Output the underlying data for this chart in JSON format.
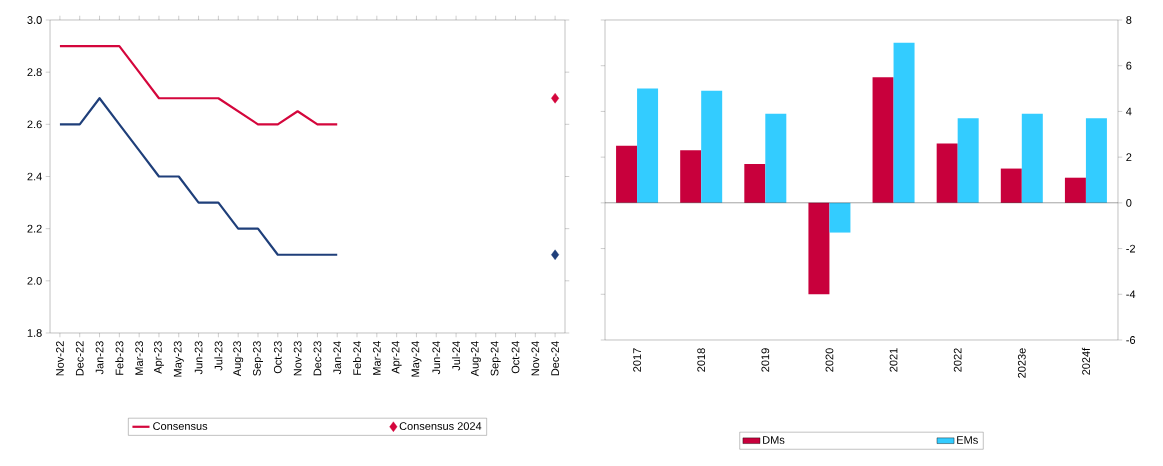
{
  "chart_data": [
    {
      "type": "line",
      "categories": [
        "Nov-22",
        "Dec-22",
        "Jan-23",
        "Feb-23",
        "Mar-23",
        "Apr-23",
        "May-23",
        "Jun-23",
        "Jul-23",
        "Aug-23",
        "Sep-23",
        "Oct-23",
        "Nov-23",
        "Dec-23",
        "Jan-24",
        "Feb-24",
        "Mar-24",
        "Apr-24",
        "May-24",
        "Jun-24",
        "Jul-24",
        "Aug-24",
        "Sep-24",
        "Oct-24",
        "Nov-24",
        "Dec-24"
      ],
      "series": [
        {
          "color": "#1f3f7a",
          "values": [
            2.6,
            2.6,
            2.7,
            2.6,
            2.5,
            2.4,
            2.4,
            2.3,
            2.3,
            2.2,
            2.2,
            2.1,
            2.1,
            2.1,
            2.1,
            null,
            null,
            null,
            null,
            null,
            null,
            null,
            null,
            null,
            null,
            null
          ]
        },
        {
          "name": "Consensus",
          "color": "#d4063c",
          "values": [
            2.9,
            2.9,
            2.9,
            2.9,
            2.8,
            2.7,
            2.7,
            2.7,
            2.7,
            2.65,
            2.6,
            2.6,
            2.65,
            2.6,
            2.6,
            null,
            null,
            null,
            null,
            null,
            null,
            null,
            null,
            null,
            null,
            null
          ]
        },
        {
          "type": "scatter",
          "marker": "diamond",
          "color": "#1f3f7a",
          "values": [
            null,
            null,
            null,
            null,
            null,
            null,
            null,
            null,
            null,
            null,
            null,
            null,
            null,
            null,
            null,
            null,
            null,
            null,
            null,
            null,
            null,
            null,
            null,
            null,
            null,
            2.1
          ]
        },
        {
          "type": "scatter",
          "marker": "diamond",
          "name": "Consensus 2024",
          "color": "#d4063c",
          "values": [
            null,
            null,
            null,
            null,
            null,
            null,
            null,
            null,
            null,
            null,
            null,
            null,
            null,
            null,
            null,
            null,
            null,
            null,
            null,
            null,
            null,
            null,
            null,
            null,
            null,
            2.7
          ]
        }
      ],
      "ylim": [
        1.8,
        3.0
      ],
      "yticks": [
        {
          "value": 1.8,
          "label": "1.8"
        },
        {
          "value": 2.0,
          "label": "2.0"
        },
        {
          "value": 2.2,
          "label": "2.2"
        },
        {
          "value": 2.4,
          "label": "2.4"
        },
        {
          "value": 2.6,
          "label": "2.6"
        },
        {
          "value": 2.8,
          "label": "2.8"
        },
        {
          "value": 3.0,
          "label": "3.0"
        }
      ],
      "legend": "bottom"
    },
    {
      "type": "bar",
      "categories": [
        "2017",
        "2018",
        "2019",
        "2020",
        "2021",
        "2022",
        "2023e",
        "2024f"
      ],
      "series": [
        {
          "name": "DMs",
          "color": "#c8003c",
          "values": [
            2.5,
            2.3,
            1.7,
            -4.0,
            5.5,
            2.6,
            1.5,
            1.1
          ]
        },
        {
          "name": "EMs",
          "color": "#33ccff",
          "values": [
            5.0,
            4.9,
            3.9,
            -1.3,
            7.0,
            3.7,
            3.9,
            3.7
          ]
        }
      ],
      "ylim": [
        -6,
        8
      ],
      "yticks": [
        -6,
        -4,
        -2,
        0,
        2,
        4,
        6,
        8
      ],
      "legend": "bottom"
    }
  ]
}
